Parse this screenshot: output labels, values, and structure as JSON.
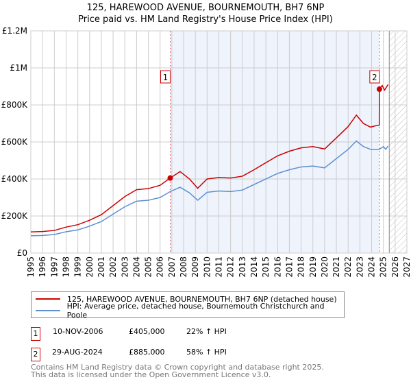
{
  "chart_data": {
    "type": "line",
    "title": "125, HAREWOOD AVENUE, BOURNEMOUTH, BH7 6NP",
    "subtitle": "Price paid vs. HM Land Registry's House Price Index (HPI)",
    "xlim": [
      1995,
      2027
    ],
    "ylim": [
      0,
      1200000
    ],
    "x_ticks": [
      "1995",
      "1996",
      "1997",
      "1998",
      "1999",
      "2000",
      "2001",
      "2002",
      "2003",
      "2004",
      "2005",
      "2006",
      "2007",
      "2008",
      "2009",
      "2010",
      "2011",
      "2012",
      "2013",
      "2014",
      "2015",
      "2016",
      "2017",
      "2018",
      "2019",
      "2020",
      "2021",
      "2022",
      "2023",
      "2024",
      "2025",
      "2026",
      "2027"
    ],
    "y_ticks": [
      {
        "v": 0,
        "label": "£0"
      },
      {
        "v": 200000,
        "label": "£200K"
      },
      {
        "v": 400000,
        "label": "£400K"
      },
      {
        "v": 600000,
        "label": "£600K"
      },
      {
        "v": 800000,
        "label": "£800K"
      },
      {
        "v": 1000000,
        "label": "£1M"
      },
      {
        "v": 1200000,
        "label": "£1.2M"
      }
    ],
    "grid": true,
    "series": [
      {
        "name": "125, HAREWOOD AVENUE, BOURNEMOUTH, BH7 6NP (detached house)",
        "color": "#cc0000",
        "points": [
          [
            1995,
            114000
          ],
          [
            1996,
            116000
          ],
          [
            1997,
            122000
          ],
          [
            1998,
            140000
          ],
          [
            1999,
            153000
          ],
          [
            2000,
            177000
          ],
          [
            2001,
            207000
          ],
          [
            2002,
            256000
          ],
          [
            2003,
            305000
          ],
          [
            2004,
            342000
          ],
          [
            2005,
            348000
          ],
          [
            2006,
            366000
          ],
          [
            2006.86,
            405000
          ],
          [
            2007.7,
            440000
          ],
          [
            2008.5,
            400000
          ],
          [
            2009.2,
            350000
          ],
          [
            2010,
            400000
          ],
          [
            2011,
            408000
          ],
          [
            2012,
            405000
          ],
          [
            2013,
            415000
          ],
          [
            2014,
            450000
          ],
          [
            2015,
            488000
          ],
          [
            2016,
            525000
          ],
          [
            2017,
            550000
          ],
          [
            2018,
            568000
          ],
          [
            2019,
            575000
          ],
          [
            2020,
            562000
          ],
          [
            2021,
            622000
          ],
          [
            2022,
            683000
          ],
          [
            2022.7,
            745000
          ],
          [
            2023.3,
            700000
          ],
          [
            2023.9,
            680000
          ],
          [
            2024.5,
            690000
          ],
          [
            2024.65,
            690000
          ],
          [
            2024.66,
            885000
          ],
          [
            2024.9,
            905000
          ],
          [
            2025.1,
            880000
          ],
          [
            2025.4,
            910000
          ]
        ]
      },
      {
        "name": "HPI: Average price, detached house, Bournemouth Christchurch and Poole",
        "color": "#5b8fd0",
        "points": [
          [
            1995,
            93000
          ],
          [
            1996,
            95000
          ],
          [
            1997,
            100000
          ],
          [
            1998,
            115000
          ],
          [
            1999,
            125000
          ],
          [
            2000,
            145000
          ],
          [
            2001,
            170000
          ],
          [
            2002,
            210000
          ],
          [
            2003,
            250000
          ],
          [
            2004,
            280000
          ],
          [
            2005,
            285000
          ],
          [
            2006,
            300000
          ],
          [
            2006.86,
            332000
          ],
          [
            2007.7,
            355000
          ],
          [
            2008.5,
            325000
          ],
          [
            2009.2,
            285000
          ],
          [
            2010,
            328000
          ],
          [
            2011,
            335000
          ],
          [
            2012,
            332000
          ],
          [
            2013,
            340000
          ],
          [
            2014,
            370000
          ],
          [
            2015,
            400000
          ],
          [
            2016,
            430000
          ],
          [
            2017,
            450000
          ],
          [
            2018,
            465000
          ],
          [
            2019,
            470000
          ],
          [
            2020,
            460000
          ],
          [
            2021,
            510000
          ],
          [
            2022,
            560000
          ],
          [
            2022.7,
            605000
          ],
          [
            2023.3,
            575000
          ],
          [
            2023.9,
            560000
          ],
          [
            2024.66,
            560000
          ],
          [
            2025,
            575000
          ],
          [
            2025.2,
            560000
          ],
          [
            2025.4,
            578000
          ]
        ]
      }
    ],
    "annotations": [
      {
        "label": "1",
        "x": 2006.86,
        "y": 405000
      },
      {
        "label": "2",
        "x": 2024.66,
        "y": 885000
      }
    ],
    "shaded_range": [
      2006.86,
      2024.66
    ],
    "forecast_hatch_from": 2025.5
  },
  "legend": {
    "red": "125, HAREWOOD AVENUE, BOURNEMOUTH, BH7 6NP (detached house)",
    "blue": "HPI: Average price, detached house, Bournemouth Christchurch and Poole"
  },
  "sales": [
    {
      "num": "1",
      "date": "10-NOV-2006",
      "price": "£405,000",
      "hpi": "22% ↑ HPI"
    },
    {
      "num": "2",
      "date": "29-AUG-2024",
      "price": "£885,000",
      "hpi": "58% ↑ HPI"
    }
  ],
  "footer": {
    "line1": "Contains HM Land Registry data © Crown copyright and database right 2025.",
    "line2": "This data is licensed under the Open Government Licence v3.0."
  }
}
